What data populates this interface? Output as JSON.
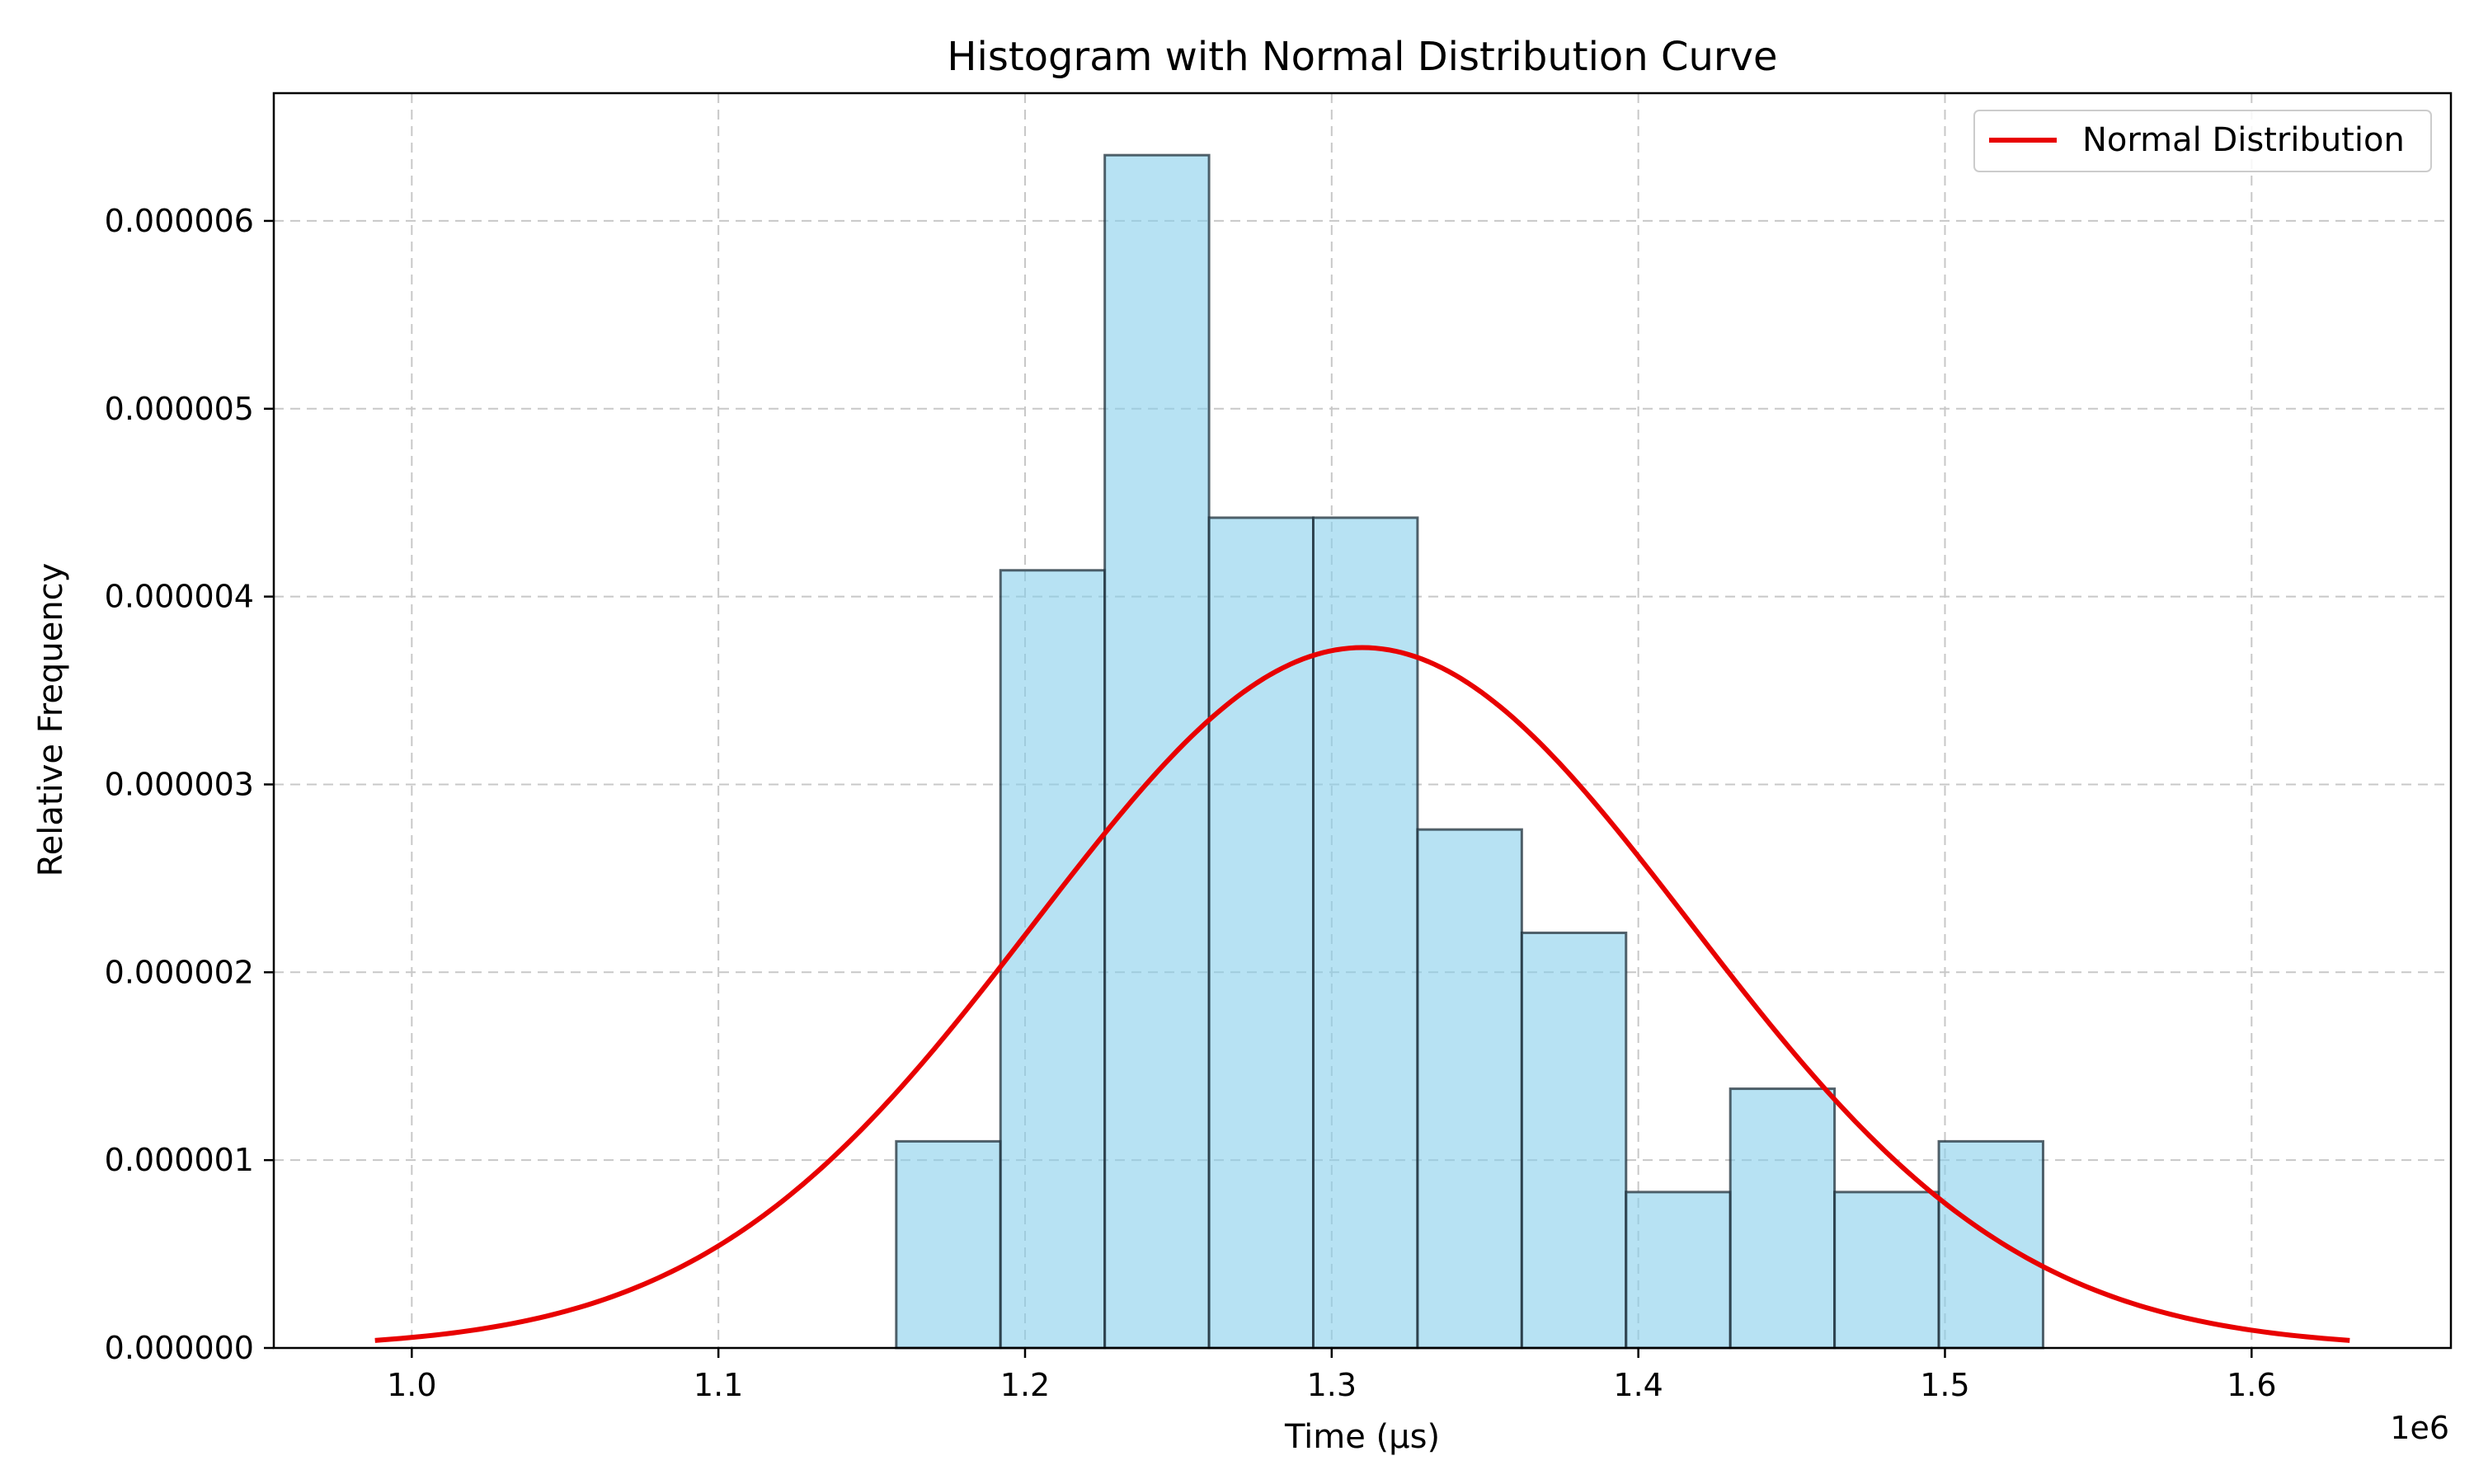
{
  "chart_data": {
    "type": "bar",
    "title": "Histogram with Normal Distribution Curve",
    "xlabel": "Time (µs)",
    "ylabel": "Relative Frequency",
    "x_offset_text": "1e6",
    "xlim": [
      955000,
      1665000
    ],
    "ylim": [
      0,
      6.68e-06
    ],
    "x_ticks": [
      1.0,
      1.1,
      1.2,
      1.3,
      1.4,
      1.5,
      1.6
    ],
    "x_tick_labels": [
      "1.0",
      "1.1",
      "1.2",
      "1.3",
      "1.4",
      "1.5",
      "1.6"
    ],
    "y_ticks": [
      0,
      1e-06,
      2e-06,
      3e-06,
      4e-06,
      5e-06,
      6e-06
    ],
    "y_tick_labels": [
      "0.000000",
      "0.000001",
      "0.000002",
      "0.000003",
      "0.000004",
      "0.000005",
      "0.000006"
    ],
    "grid": true,
    "legend_position": "top-right",
    "bins": [
      {
        "x0": 1158000,
        "x1": 1192000,
        "value": 1.1e-06
      },
      {
        "x0": 1192000,
        "x1": 1226000,
        "value": 4.14e-06
      },
      {
        "x0": 1226000,
        "x1": 1260000,
        "value": 6.35e-06
      },
      {
        "x0": 1260000,
        "x1": 1294000,
        "value": 4.42e-06
      },
      {
        "x0": 1294000,
        "x1": 1328000,
        "value": 4.42e-06
      },
      {
        "x0": 1328000,
        "x1": 1362000,
        "value": 2.76e-06
      },
      {
        "x0": 1362000,
        "x1": 1396000,
        "value": 2.21e-06
      },
      {
        "x0": 1396000,
        "x1": 1430000,
        "value": 8.3e-07
      },
      {
        "x0": 1430000,
        "x1": 1464000,
        "value": 1.38e-06
      },
      {
        "x0": 1464000,
        "x1": 1498000,
        "value": 8.3e-07
      },
      {
        "x0": 1498000,
        "x1": 1532000,
        "value": 1.1e-06
      }
    ],
    "series": [
      {
        "name": "Normal Distribution",
        "type": "line",
        "mean": 1310000,
        "std": 107000,
        "x_range": [
          988000,
          1632000
        ]
      }
    ],
    "colors": {
      "bar_fill": "#87ceeb",
      "bar_edge": "#1f2f3a",
      "curve": "#e80000",
      "grid": "#c8c8c8",
      "axis": "#000000"
    }
  }
}
